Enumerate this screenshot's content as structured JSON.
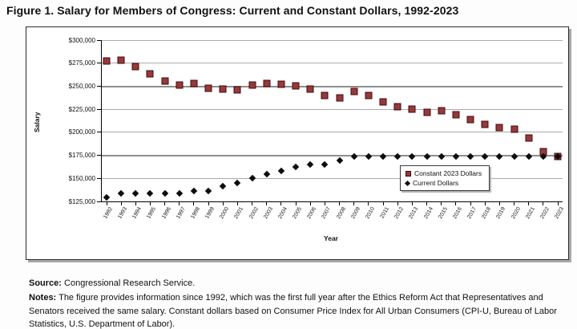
{
  "title": "Figure 1. Salary for Members of Congress: Current and Constant Dollars, 1992-2023",
  "chart_data": {
    "type": "scatter",
    "title": "Figure 1. Salary for Members of Congress: Current and Constant Dollars, 1992-2023",
    "xlabel": "Year",
    "ylabel": "Salary",
    "ylim": [
      125000,
      300000
    ],
    "ytick_step": 25000,
    "yticks": [
      "$125,000",
      "$150,000",
      "$175,000",
      "$200,000",
      "$225,000",
      "$250,000",
      "$275,000",
      "$300,000"
    ],
    "grid": true,
    "legend_position": "inside lower right",
    "x": [
      "1992",
      "1993",
      "1994",
      "1995",
      "1996",
      "1997",
      "1998",
      "1999",
      "2000",
      "2001",
      "2002",
      "2003",
      "2004",
      "2005",
      "2006",
      "2007",
      "2008",
      "2009",
      "2010",
      "2011",
      "2012",
      "2013",
      "2014",
      "2015",
      "2016",
      "2017",
      "2018",
      "2019",
      "2020",
      "2021",
      "2022",
      "2023"
    ],
    "series": [
      {
        "name": "Constant 2023 Dollars",
        "marker": "square",
        "color": "#97393b",
        "values": [
          277000,
          278000,
          271000,
          263000,
          256000,
          251000,
          253000,
          248000,
          247000,
          246000,
          251000,
          253000,
          252000,
          250000,
          247000,
          240000,
          237000,
          244000,
          240000,
          233000,
          228000,
          225000,
          222000,
          223000,
          219000,
          214000,
          209000,
          205000,
          203000,
          194000,
          179000,
          174000
        ]
      },
      {
        "name": "Current Dollars",
        "marker": "diamond",
        "color": "#0d0d0d",
        "values": [
          129500,
          133600,
          133600,
          133600,
          133600,
          133600,
          136700,
          136700,
          141300,
          145100,
          150000,
          154700,
          158100,
          162100,
          165200,
          165200,
          169300,
          174000,
          174000,
          174000,
          174000,
          174000,
          174000,
          174000,
          174000,
          174000,
          174000,
          174000,
          174000,
          174000,
          174000,
          174000
        ]
      }
    ]
  },
  "source": {
    "label": "Source:",
    "text": "Congressional Research Service."
  },
  "notes": {
    "label": "Notes:",
    "text": "The figure provides information since 1992, which was the first full year after the Ethics Reform Act that Representatives and Senators received the same salary. Constant dollars based on Consumer Price Index for All Urban Consumers (CPI-U, Bureau of Labor Statistics, U.S. Department of Labor)."
  },
  "colors": {
    "constant_series": "#97393b",
    "current_series": "#0d0d0d",
    "gridline": "#ababab",
    "box_shadow": "#a8a8a8"
  }
}
